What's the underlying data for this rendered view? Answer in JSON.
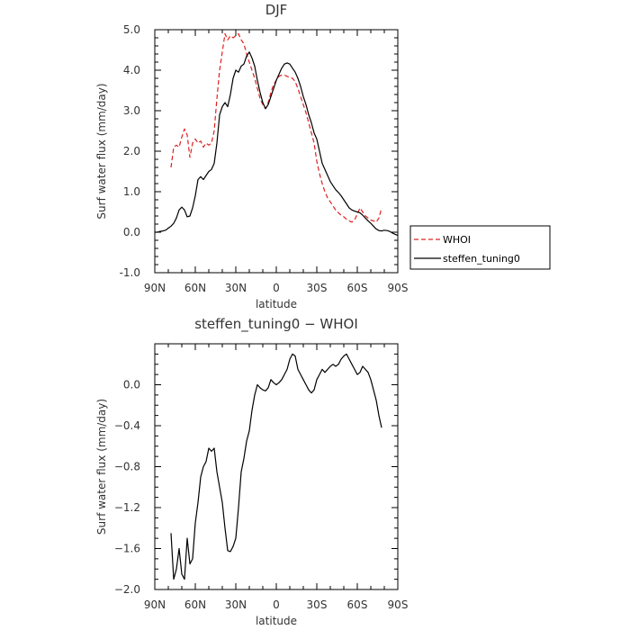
{
  "chart_data": [
    {
      "type": "line",
      "title": "DJF",
      "xlabel": "latitude",
      "ylabel": "Surf water flux (mm/day)",
      "xlim": [
        90,
        -90
      ],
      "ylim": [
        -1.0,
        5.0
      ],
      "x_ticks": [
        90,
        60,
        30,
        0,
        -30,
        -60,
        -90
      ],
      "x_tick_labels": [
        "90N",
        "60N",
        "30N",
        "0",
        "30S",
        "60S",
        "90S"
      ],
      "y_ticks": [
        -1.0,
        0.0,
        1.0,
        2.0,
        3.0,
        4.0,
        5.0
      ],
      "y_tick_labels": [
        "-1.0",
        "0.0",
        "1.0",
        "2.0",
        "3.0",
        "4.0",
        "5.0"
      ],
      "legend_position": "outside-right",
      "series": [
        {
          "name": "WHOI",
          "color": "#e02020",
          "dash": "dashed",
          "x": [
            78,
            76,
            74,
            72,
            70,
            68,
            66,
            64,
            62,
            60,
            58,
            56,
            54,
            52,
            50,
            48,
            46,
            44,
            42,
            40,
            38,
            36,
            34,
            32,
            30,
            28,
            26,
            24,
            22,
            20,
            18,
            16,
            14,
            12,
            10,
            8,
            6,
            4,
            2,
            0,
            -2,
            -4,
            -6,
            -8,
            -10,
            -12,
            -14,
            -16,
            -18,
            -20,
            -22,
            -24,
            -26,
            -28,
            -30,
            -32,
            -34,
            -36,
            -38,
            -40,
            -42,
            -44,
            -46,
            -48,
            -50,
            -52,
            -54,
            -56,
            -58,
            -60,
            -62,
            -64,
            -66,
            -68,
            -70,
            -72,
            -74,
            -76,
            -78
          ],
          "y": [
            1.6,
            2.1,
            2.15,
            2.1,
            2.35,
            2.55,
            2.4,
            1.85,
            2.2,
            2.3,
            2.2,
            2.25,
            2.1,
            2.2,
            2.15,
            2.2,
            2.5,
            3.3,
            4.0,
            4.45,
            4.9,
            4.75,
            4.85,
            4.8,
            4.85,
            4.9,
            4.75,
            4.65,
            4.4,
            4.2,
            4.0,
            3.8,
            3.55,
            3.3,
            3.15,
            3.05,
            3.2,
            3.45,
            3.65,
            3.75,
            3.85,
            3.88,
            3.88,
            3.85,
            3.82,
            3.8,
            3.72,
            3.55,
            3.35,
            3.15,
            2.95,
            2.7,
            2.45,
            2.2,
            1.75,
            1.45,
            1.2,
            1.0,
            0.85,
            0.75,
            0.65,
            0.55,
            0.48,
            0.42,
            0.38,
            0.32,
            0.28,
            0.25,
            0.3,
            0.45,
            0.6,
            0.5,
            0.4,
            0.35,
            0.3,
            0.28,
            0.25,
            0.35,
            0.6
          ]
        },
        {
          "name": "steffen_tuning0",
          "color": "#000000",
          "dash": "solid",
          "x": [
            90,
            88,
            86,
            84,
            82,
            80,
            78,
            76,
            74,
            72,
            70,
            68,
            66,
            64,
            62,
            60,
            58,
            56,
            54,
            52,
            50,
            48,
            46,
            44,
            42,
            40,
            38,
            36,
            34,
            32,
            30,
            28,
            26,
            24,
            22,
            20,
            18,
            16,
            14,
            12,
            10,
            8,
            6,
            4,
            2,
            0,
            -2,
            -4,
            -6,
            -8,
            -10,
            -12,
            -14,
            -16,
            -18,
            -20,
            -22,
            -24,
            -26,
            -28,
            -30,
            -32,
            -34,
            -36,
            -38,
            -40,
            -42,
            -44,
            -46,
            -48,
            -50,
            -52,
            -54,
            -56,
            -58,
            -60,
            -62,
            -64,
            -66,
            -68,
            -70,
            -72,
            -74,
            -76,
            -78,
            -80,
            -82,
            -84,
            -86,
            -88,
            -90
          ],
          "y": [
            0.0,
            0.0,
            0.02,
            0.03,
            0.05,
            0.1,
            0.15,
            0.22,
            0.35,
            0.55,
            0.62,
            0.55,
            0.38,
            0.4,
            0.6,
            0.9,
            1.3,
            1.37,
            1.3,
            1.4,
            1.5,
            1.55,
            1.7,
            2.2,
            2.9,
            3.1,
            3.2,
            3.1,
            3.4,
            3.8,
            4.0,
            3.95,
            4.1,
            4.15,
            4.35,
            4.45,
            4.3,
            4.1,
            3.75,
            3.45,
            3.2,
            3.05,
            3.15,
            3.35,
            3.55,
            3.75,
            3.9,
            4.05,
            4.15,
            4.18,
            4.15,
            4.05,
            3.95,
            3.8,
            3.6,
            3.35,
            3.15,
            2.9,
            2.7,
            2.45,
            2.3,
            2.0,
            1.7,
            1.55,
            1.4,
            1.25,
            1.15,
            1.05,
            0.98,
            0.9,
            0.8,
            0.7,
            0.6,
            0.55,
            0.52,
            0.5,
            0.48,
            0.42,
            0.35,
            0.28,
            0.22,
            0.15,
            0.08,
            0.04,
            0.03,
            0.05,
            0.04,
            0.02,
            -0.02,
            -0.05,
            -0.08
          ]
        }
      ]
    },
    {
      "type": "line",
      "title": "steffen_tuning0 − WHOI",
      "xlabel": "latitude",
      "ylabel": "Surf water flux (mm/day)",
      "xlim": [
        90,
        -90
      ],
      "ylim": [
        -2.0,
        0.4
      ],
      "x_ticks": [
        90,
        60,
        30,
        0,
        -30,
        -60,
        -90
      ],
      "x_tick_labels": [
        "90N",
        "60N",
        "30N",
        "0",
        "30S",
        "60S",
        "90S"
      ],
      "y_ticks": [
        -2.0,
        -1.6,
        -1.2,
        -0.8,
        -0.4,
        0.0
      ],
      "y_tick_labels": [
        "−2.0",
        "−1.6",
        "−1.2",
        "−0.8",
        "−0.4",
        "0.0"
      ],
      "series": [
        {
          "color": "#000000",
          "dash": "solid",
          "x": [
            78,
            76,
            74,
            72,
            70,
            68,
            66,
            64,
            62,
            60,
            58,
            56,
            54,
            52,
            50,
            48,
            46,
            44,
            42,
            40,
            38,
            36,
            34,
            32,
            30,
            28,
            26,
            24,
            22,
            20,
            18,
            16,
            14,
            12,
            10,
            8,
            6,
            4,
            2,
            0,
            -2,
            -4,
            -6,
            -8,
            -10,
            -12,
            -14,
            -16,
            -18,
            -20,
            -22,
            -24,
            -26,
            -28,
            -30,
            -32,
            -34,
            -36,
            -38,
            -40,
            -42,
            -44,
            -46,
            -48,
            -50,
            -52,
            -54,
            -56,
            -58,
            -60,
            -62,
            -64,
            -66,
            -68,
            -70,
            -72,
            -74,
            -76,
            -78
          ],
          "y": [
            -1.45,
            -1.9,
            -1.8,
            -1.6,
            -1.85,
            -1.9,
            -1.5,
            -1.75,
            -1.7,
            -1.35,
            -1.15,
            -0.9,
            -0.8,
            -0.75,
            -0.62,
            -0.65,
            -0.62,
            -0.85,
            -1.0,
            -1.15,
            -1.4,
            -1.62,
            -1.63,
            -1.58,
            -1.5,
            -1.2,
            -0.85,
            -0.72,
            -0.55,
            -0.45,
            -0.25,
            -0.1,
            0.0,
            -0.03,
            -0.05,
            -0.06,
            -0.03,
            0.05,
            0.02,
            0.0,
            0.02,
            0.05,
            0.1,
            0.15,
            0.25,
            0.3,
            0.28,
            0.15,
            0.1,
            0.05,
            0.0,
            -0.05,
            -0.08,
            -0.05,
            0.05,
            0.1,
            0.15,
            0.12,
            0.15,
            0.18,
            0.2,
            0.18,
            0.2,
            0.25,
            0.28,
            0.3,
            0.25,
            0.2,
            0.15,
            0.1,
            0.12,
            0.18,
            0.15,
            0.12,
            0.05,
            -0.05,
            -0.15,
            -0.3,
            -0.42
          ]
        }
      ]
    }
  ]
}
